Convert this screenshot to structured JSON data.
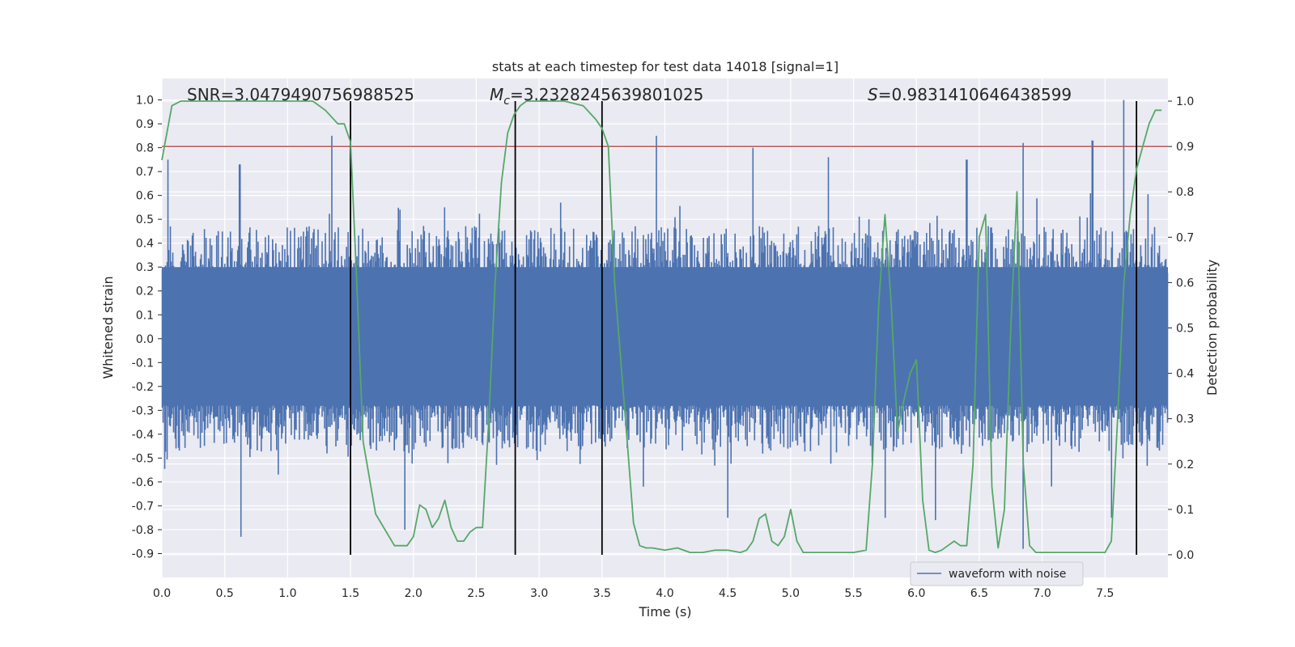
{
  "chart_data": {
    "type": "line",
    "title": "stats at each timestep for test data 14018 [signal=1]",
    "xlabel": "Time (s)",
    "ylabel_left": "Whitened strain",
    "ylabel_right": "Detection probability",
    "xlim": [
      0.0,
      8.0
    ],
    "ylim_left": [
      -1.0,
      1.09
    ],
    "ylim_right": [
      -0.05,
      1.05
    ],
    "x_ticks": [
      "0.0",
      "0.5",
      "1.0",
      "1.5",
      "2.0",
      "2.5",
      "3.0",
      "3.5",
      "4.0",
      "4.5",
      "5.0",
      "5.5",
      "6.0",
      "6.5",
      "7.0",
      "7.5"
    ],
    "y_ticks_left": [
      "1.0",
      "0.9",
      "0.8",
      "0.7",
      "0.6",
      "0.5",
      "0.4",
      "0.3",
      "0.2",
      "0.1",
      "0.0",
      "-0.1",
      "-0.2",
      "-0.3",
      "-0.4",
      "-0.5",
      "-0.6",
      "-0.7",
      "-0.8",
      "-0.9"
    ],
    "y_ticks_right": [
      "1.0",
      "0.9",
      "0.8",
      "0.7",
      "0.6",
      "0.5",
      "0.4",
      "0.3",
      "0.2",
      "0.1",
      "0.0"
    ],
    "annotations": [
      {
        "text": "SNR=3.0479490756988525"
      },
      {
        "text": "=3.2328245639801025",
        "math_symbol": "M",
        "math_subscript": "c"
      },
      {
        "text": "=0.9831410646438599",
        "math_symbol": "S"
      }
    ],
    "threshold": {
      "axis": "right",
      "value": 0.9,
      "color": "#c44e52"
    },
    "vlines": [
      1.5,
      2.81,
      3.5,
      7.75
    ],
    "series": [
      {
        "name": "waveform with noise",
        "axis": "left",
        "color": "#4c72b0",
        "kind": "noise-envelope",
        "typical_low": -0.35,
        "typical_high": 0.45,
        "spikes_high": [
          {
            "x": 0.05,
            "y": 0.75
          },
          {
            "x": 0.62,
            "y": 0.73
          },
          {
            "x": 1.35,
            "y": 0.85
          },
          {
            "x": 1.5,
            "y": 0.9
          },
          {
            "x": 2.25,
            "y": 0.55
          },
          {
            "x": 3.17,
            "y": 0.57
          },
          {
            "x": 3.93,
            "y": 0.85
          },
          {
            "x": 4.7,
            "y": 0.8
          },
          {
            "x": 5.3,
            "y": 0.76
          },
          {
            "x": 6.4,
            "y": 0.75
          },
          {
            "x": 6.85,
            "y": 0.82
          },
          {
            "x": 7.4,
            "y": 0.83
          },
          {
            "x": 7.65,
            "y": 1.0
          }
        ],
        "spikes_low": [
          {
            "x": 0.63,
            "y": -0.83
          },
          {
            "x": 1.93,
            "y": -0.8
          },
          {
            "x": 3.83,
            "y": -0.62
          },
          {
            "x": 4.5,
            "y": -0.75
          },
          {
            "x": 5.75,
            "y": -0.75
          },
          {
            "x": 6.15,
            "y": -0.76
          },
          {
            "x": 6.85,
            "y": -0.88
          },
          {
            "x": 7.55,
            "y": -0.75
          }
        ]
      },
      {
        "name": "detection probability",
        "axis": "right",
        "color": "#55a868",
        "x": [
          0.0,
          0.08,
          0.15,
          0.4,
          0.8,
          1.0,
          1.2,
          1.3,
          1.4,
          1.45,
          1.5,
          1.55,
          1.6,
          1.7,
          1.85,
          1.9,
          1.95,
          2.0,
          2.05,
          2.1,
          2.15,
          2.2,
          2.25,
          2.3,
          2.35,
          2.4,
          2.45,
          2.5,
          2.55,
          2.6,
          2.65,
          2.7,
          2.75,
          2.8,
          2.85,
          2.9,
          2.95,
          3.0,
          3.2,
          3.35,
          3.45,
          3.5,
          3.55,
          3.6,
          3.7,
          3.75,
          3.8,
          3.85,
          3.9,
          4.0,
          4.1,
          4.2,
          4.3,
          4.4,
          4.5,
          4.6,
          4.65,
          4.7,
          4.75,
          4.8,
          4.85,
          4.9,
          4.95,
          5.0,
          5.05,
          5.1,
          5.15,
          5.3,
          5.5,
          5.6,
          5.65,
          5.7,
          5.75,
          5.8,
          5.85,
          5.9,
          5.95,
          6.0,
          6.05,
          6.1,
          6.15,
          6.2,
          6.25,
          6.3,
          6.35,
          6.4,
          6.45,
          6.5,
          6.55,
          6.6,
          6.65,
          6.7,
          6.75,
          6.8,
          6.85,
          6.9,
          6.95,
          7.0,
          7.1,
          7.2,
          7.3,
          7.4,
          7.5,
          7.55,
          7.6,
          7.65,
          7.7,
          7.75,
          7.8,
          7.85,
          7.9,
          7.95
        ],
        "y": [
          0.87,
          0.99,
          1.0,
          1.0,
          1.0,
          1.0,
          1.0,
          0.98,
          0.95,
          0.95,
          0.91,
          0.6,
          0.25,
          0.09,
          0.02,
          0.02,
          0.02,
          0.04,
          0.11,
          0.1,
          0.06,
          0.08,
          0.12,
          0.06,
          0.03,
          0.03,
          0.05,
          0.06,
          0.06,
          0.3,
          0.6,
          0.82,
          0.93,
          0.97,
          0.99,
          1.0,
          1.0,
          1.0,
          1.0,
          0.99,
          0.96,
          0.94,
          0.9,
          0.6,
          0.25,
          0.07,
          0.02,
          0.015,
          0.015,
          0.01,
          0.015,
          0.005,
          0.005,
          0.01,
          0.01,
          0.005,
          0.01,
          0.03,
          0.08,
          0.09,
          0.03,
          0.02,
          0.04,
          0.1,
          0.03,
          0.005,
          0.005,
          0.005,
          0.005,
          0.01,
          0.2,
          0.55,
          0.75,
          0.55,
          0.27,
          0.34,
          0.4,
          0.43,
          0.12,
          0.01,
          0.005,
          0.01,
          0.02,
          0.03,
          0.02,
          0.02,
          0.2,
          0.7,
          0.75,
          0.15,
          0.015,
          0.1,
          0.5,
          0.8,
          0.2,
          0.02,
          0.005,
          0.005,
          0.005,
          0.005,
          0.005,
          0.005,
          0.005,
          0.03,
          0.3,
          0.6,
          0.75,
          0.85,
          0.9,
          0.95,
          0.98,
          0.98
        ]
      }
    ],
    "legend": {
      "placement": "lower-center-right",
      "entries": [
        "waveform with noise"
      ]
    }
  }
}
